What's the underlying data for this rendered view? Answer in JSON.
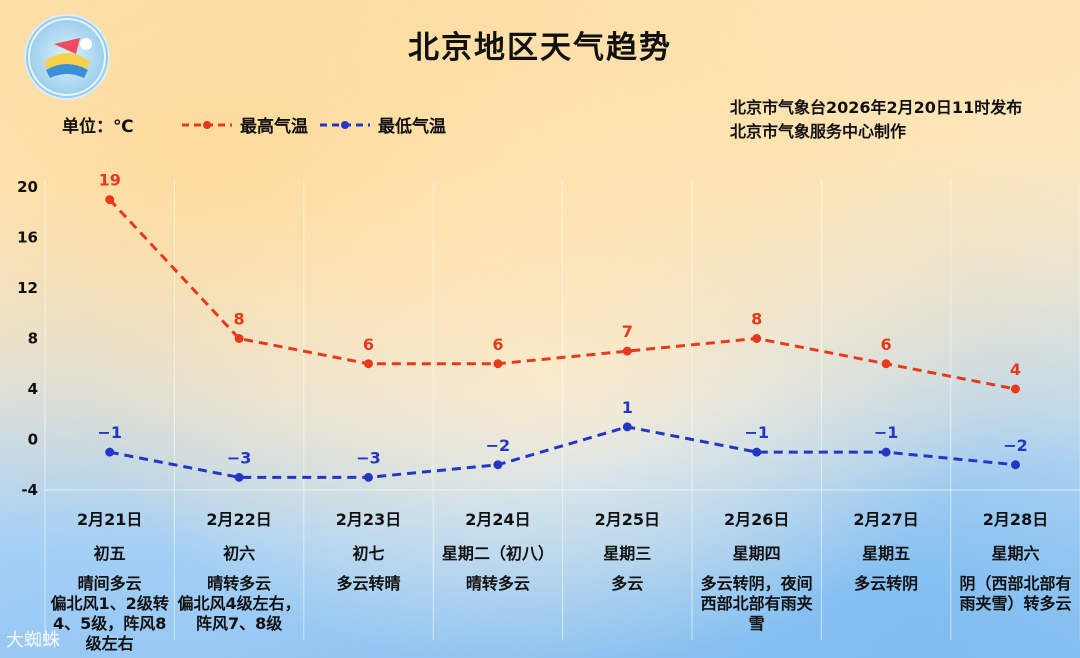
{
  "header": {
    "title": "北京地区天气趋势",
    "unit": "单位：℃",
    "legend_high": "最高气温",
    "legend_low": "最低气温",
    "publisher_line1": "北京市气象台2026年2月20日11时发布",
    "publisher_line2": "北京市气象服务中心制作",
    "watermark": "大蜘蛛"
  },
  "colors": {
    "high": "#e8391e",
    "low": "#2436c4"
  },
  "chart_data": {
    "type": "line",
    "title": "北京地区天气趋势",
    "ylabel": "单位：℃",
    "ylim": [
      -4,
      20
    ],
    "yticks": [
      20,
      16,
      12,
      8,
      4,
      0,
      -4
    ],
    "categories": [
      "2月21日",
      "2月22日",
      "2月23日",
      "2月24日",
      "2月25日",
      "2月26日",
      "2月27日",
      "2月28日"
    ],
    "series": [
      {
        "name": "最高气温",
        "values": [
          19,
          8,
          6,
          6,
          7,
          8,
          6,
          4
        ],
        "labels": [
          "19",
          "8",
          "6",
          "6",
          "7",
          "8",
          "6",
          "4"
        ]
      },
      {
        "name": "最低气温",
        "values": [
          -1,
          -3,
          -3,
          -2,
          1,
          -1,
          -1,
          -2
        ],
        "labels": [
          "−1",
          "−3",
          "−3",
          "−2",
          "1",
          "−1",
          "−1",
          "−2"
        ]
      }
    ],
    "grid": true,
    "legend": "top"
  },
  "days": [
    {
      "date": "2月21日",
      "lunar": "初五",
      "weather": [
        "晴间多云",
        "偏北风1、2级转",
        "4、5级，阵风8",
        "级左右"
      ]
    },
    {
      "date": "2月22日",
      "lunar": "初六",
      "weather": [
        "晴转多云",
        "偏北风4级左右，",
        "阵风7、8级"
      ]
    },
    {
      "date": "2月23日",
      "lunar": "初七",
      "weather": [
        "多云转晴"
      ]
    },
    {
      "date": "2月24日",
      "lunar": "星期二（初八）",
      "weather": [
        "晴转多云"
      ]
    },
    {
      "date": "2月25日",
      "lunar": "星期三",
      "weather": [
        "多云"
      ]
    },
    {
      "date": "2月26日",
      "lunar": "星期四",
      "weather": [
        "多云转阴，夜间",
        "西部北部有雨夹",
        "雪"
      ]
    },
    {
      "date": "2月27日",
      "lunar": "星期五",
      "weather": [
        "多云转阴"
      ]
    },
    {
      "date": "2月28日",
      "lunar": "星期六",
      "weather": [
        "阴（西部北部有",
        "雨夹雪）转多云"
      ]
    }
  ]
}
